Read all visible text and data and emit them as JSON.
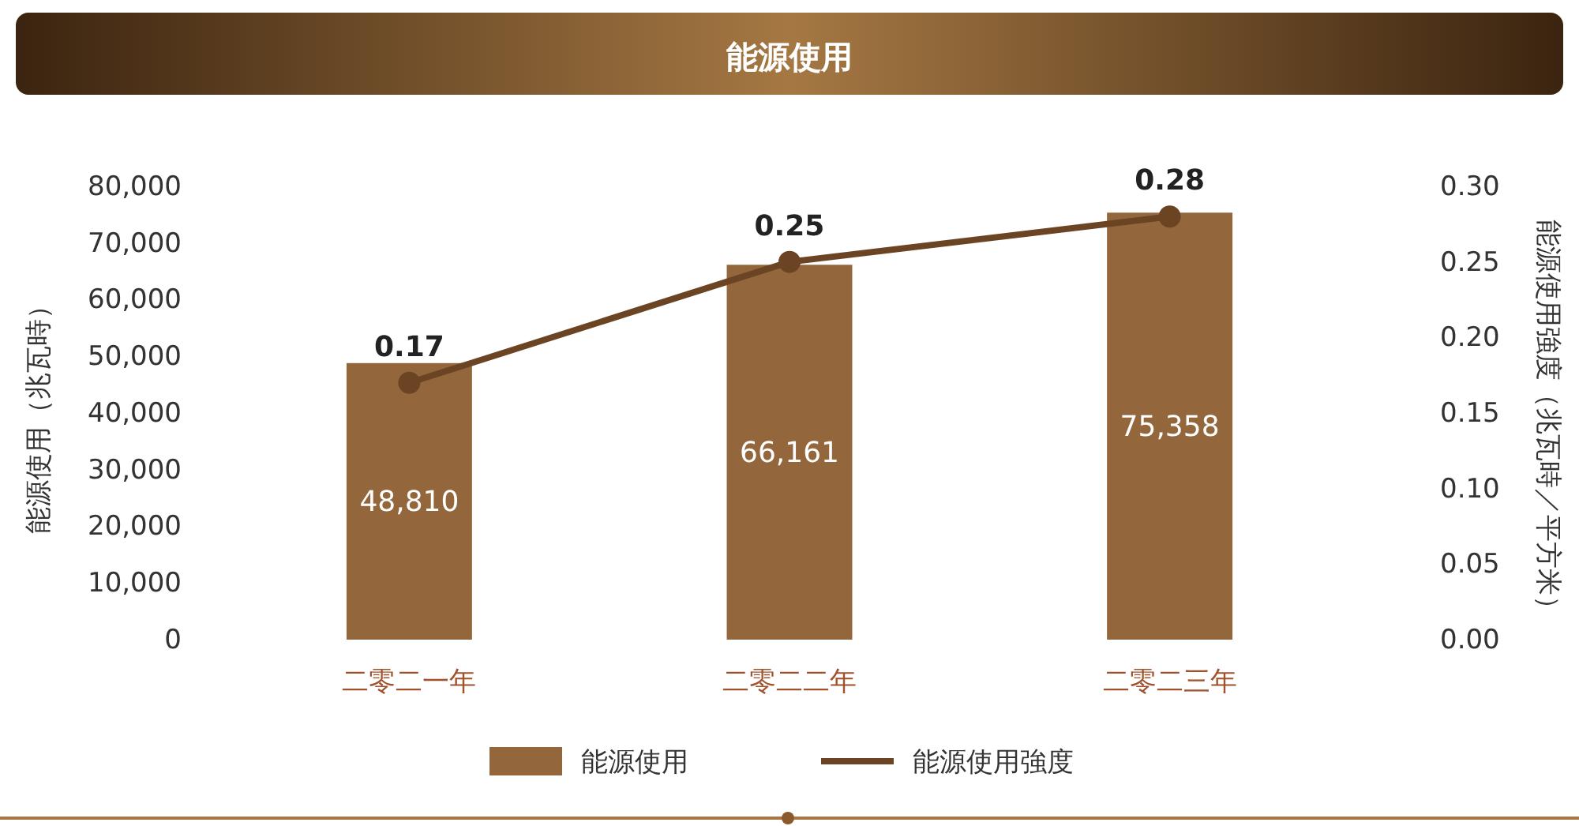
{
  "chart_data": {
    "type": "bar",
    "title": "能源使用",
    "ylabel": "能源使用（兆瓦時）",
    "y2label": "能源使用強度（兆瓦時／平方米）",
    "categories": [
      "二零二一年",
      "二零二二年",
      "二零二三年"
    ],
    "series": [
      {
        "name": "能源使用",
        "color": "#94663c",
        "values": [
          48810,
          66161,
          75358
        ],
        "value_labels": [
          "48,810",
          "66,161",
          "75,358"
        ]
      },
      {
        "name": "能源使用強度",
        "type": "line",
        "axis": "y2",
        "color": "#6b4423",
        "values": [
          0.17,
          0.25,
          0.28
        ]
      }
    ],
    "ylim": [
      0,
      80000
    ],
    "yticks": [
      {
        "value": 0,
        "label": "0"
      },
      {
        "value": 10000,
        "label": "10,000"
      },
      {
        "value": 20000,
        "label": "20,000"
      },
      {
        "value": 30000,
        "label": "30,000"
      },
      {
        "value": 40000,
        "label": "40,000"
      },
      {
        "value": 50000,
        "label": "50,000"
      },
      {
        "value": 60000,
        "label": "60,000"
      },
      {
        "value": 70000,
        "label": "70,000"
      },
      {
        "value": 80000,
        "label": "80,000"
      }
    ],
    "y2lim": [
      0,
      0.3
    ],
    "y2ticks": [
      {
        "value": 0,
        "label": "0.00"
      },
      {
        "value": 0.05,
        "label": "0.05"
      },
      {
        "value": 0.1,
        "label": "0.10"
      },
      {
        "value": 0.15,
        "label": "0.15"
      },
      {
        "value": 0.2,
        "label": "0.20"
      },
      {
        "value": 0.25,
        "label": "0.25"
      },
      {
        "value": 0.3,
        "label": "0.30"
      }
    ],
    "data_labels": true,
    "grid": false,
    "legend": "bottom",
    "marker": "circle",
    "line_style": "solid"
  }
}
